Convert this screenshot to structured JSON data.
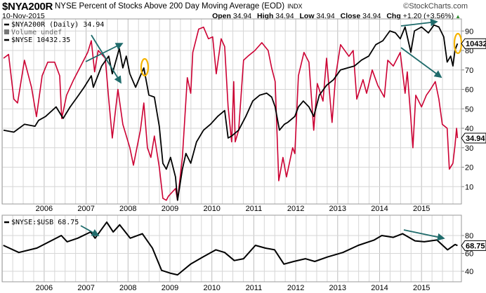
{
  "header": {
    "symbol": "$NYA200R",
    "title": "NYSE Percent of Stocks Above 200 Day Moving Average (EOD)",
    "exchange": "INDX",
    "date": "10-Nov-2015",
    "brand": "©StockCharts.com",
    "open_label": "Open",
    "open": "34.94",
    "high_label": "High",
    "high": "34.94",
    "low_label": "Low",
    "low": "34.94",
    "close_label": "Close",
    "close": "34.94",
    "chg_label": "Chg",
    "chg": "+1.20 (+3.56%)",
    "chg_icon": "up-triangle-icon"
  },
  "colors": {
    "nya200r": "#cc0033",
    "nyse": "#000000",
    "ratio": "#000000",
    "arrow": "#1f6b6b",
    "highlight": "#f5b400",
    "grid": "#d6d6d6",
    "up": "#2e8b2e"
  },
  "chart_data": [
    {
      "type": "line",
      "panel": "main",
      "legend": {
        "placement": "top-left",
        "items": [
          "$NYA200R (Daily) 34.94",
          "Volume undef",
          "$NYSE 10432.35"
        ]
      },
      "yticks": [
        10,
        20,
        30,
        40,
        50,
        60,
        70,
        80,
        90
      ],
      "xticks": [
        "2006",
        "2007",
        "2008",
        "2009",
        "2010",
        "2011",
        "2012",
        "2013",
        "2014",
        "2015"
      ],
      "grid": true,
      "last_labels": {
        "nyse": "10432",
        "nya200r": "34.94"
      },
      "series": [
        {
          "name": "$NYA200R",
          "axis": "right",
          "points": [
            [
              "2005-01-12",
              76
            ],
            [
              "2005-02-25",
              78
            ],
            [
              "2005-04-12",
              55
            ],
            [
              "2005-05-14",
              53
            ],
            [
              "2005-07-13",
              75
            ],
            [
              "2005-09-13",
              61
            ],
            [
              "2005-10-26",
              46
            ],
            [
              "2005-12-14",
              67
            ],
            [
              "2006-02-01",
              74
            ],
            [
              "2006-04-02",
              74
            ],
            [
              "2006-05-16",
              67
            ],
            [
              "2006-06-03",
              45
            ],
            [
              "2006-07-15",
              57
            ],
            [
              "2006-09-15",
              65
            ],
            [
              "2006-11-15",
              72
            ],
            [
              "2007-01-15",
              79
            ],
            [
              "2007-02-15",
              85
            ],
            [
              "2007-03-16",
              69
            ],
            [
              "2007-04-16",
              80
            ],
            [
              "2007-06-17",
              76
            ],
            [
              "2007-07-17",
              55
            ],
            [
              "2007-08-17",
              35
            ],
            [
              "2007-10-05",
              60
            ],
            [
              "2007-11-17",
              42
            ],
            [
              "2008-01-17",
              30
            ],
            [
              "2008-02-17",
              21
            ],
            [
              "2008-04-18",
              39
            ],
            [
              "2008-05-18",
              53
            ],
            [
              "2008-06-18",
              30
            ],
            [
              "2008-07-18",
              25
            ],
            [
              "2008-08-18",
              36
            ],
            [
              "2008-09-30",
              20
            ],
            [
              "2008-10-31",
              4
            ],
            [
              "2008-11-30",
              3
            ],
            [
              "2008-12-18",
              5
            ],
            [
              "2009-02-18",
              9
            ],
            [
              "2009-03-08",
              3
            ],
            [
              "2009-04-19",
              25
            ],
            [
              "2009-06-01",
              66
            ],
            [
              "2009-07-01",
              58
            ],
            [
              "2009-07-19",
              79
            ],
            [
              "2009-09-08",
              91
            ],
            [
              "2009-10-20",
              92
            ],
            [
              "2009-12-02",
              86
            ],
            [
              "2010-01-08",
              87
            ],
            [
              "2010-02-08",
              68
            ],
            [
              "2010-03-23",
              86
            ],
            [
              "2010-04-22",
              82
            ],
            [
              "2010-05-22",
              51
            ],
            [
              "2010-06-22",
              33
            ],
            [
              "2010-07-10",
              64
            ],
            [
              "2010-07-23",
              33
            ],
            [
              "2010-08-22",
              39
            ],
            [
              "2010-10-04",
              75
            ],
            [
              "2010-11-10",
              77
            ],
            [
              "2011-01-11",
              80
            ],
            [
              "2011-03-12",
              84
            ],
            [
              "2011-05-06",
              80
            ],
            [
              "2011-06-05",
              71
            ],
            [
              "2011-07-06",
              64
            ],
            [
              "2011-08-06",
              13
            ],
            [
              "2011-09-12",
              25
            ],
            [
              "2011-10-12",
              15
            ],
            [
              "2011-12-05",
              30
            ],
            [
              "2011-12-24",
              27
            ],
            [
              "2012-01-24",
              67
            ],
            [
              "2012-03-13",
              79
            ],
            [
              "2012-04-25",
              74
            ],
            [
              "2012-06-06",
              39
            ],
            [
              "2012-07-07",
              63
            ],
            [
              "2012-08-26",
              54
            ],
            [
              "2012-09-26",
              76
            ],
            [
              "2012-11-13",
              43
            ],
            [
              "2012-12-14",
              67
            ],
            [
              "2013-01-26",
              83
            ],
            [
              "2013-04-09",
              77
            ],
            [
              "2013-05-16",
              80
            ],
            [
              "2013-06-16",
              55
            ],
            [
              "2013-08-10",
              65
            ],
            [
              "2013-09-10",
              58
            ],
            [
              "2013-10-29",
              70
            ],
            [
              "2013-12-17",
              62
            ],
            [
              "2014-02-11",
              56
            ],
            [
              "2014-03-13",
              75
            ],
            [
              "2014-04-30",
              72
            ],
            [
              "2014-06-30",
              79
            ],
            [
              "2014-08-11",
              58
            ],
            [
              "2014-08-30",
              69
            ],
            [
              "2014-09-30",
              45
            ],
            [
              "2014-10-18",
              30
            ],
            [
              "2014-11-12",
              57
            ],
            [
              "2015-01-01",
              51
            ],
            [
              "2015-02-12",
              57
            ],
            [
              "2015-03-20",
              60
            ],
            [
              "2015-05-01",
              64
            ],
            [
              "2015-06-01",
              55
            ],
            [
              "2015-07-01",
              42
            ],
            [
              "2015-08-12",
              40
            ],
            [
              "2015-08-31",
              19
            ],
            [
              "2015-10-01",
              22
            ],
            [
              "2015-10-19",
              31
            ],
            [
              "2015-11-02",
              40
            ],
            [
              "2015-11-10",
              34.94
            ]
          ]
        },
        {
          "name": "$NYSE",
          "axis": "overlay",
          "points": [
            [
              "2005-01-12",
              6900
            ],
            [
              "2005-04-12",
              6820
            ],
            [
              "2005-07-13",
              7140
            ],
            [
              "2005-10-13",
              7060
            ],
            [
              "2005-11-14",
              7300
            ],
            [
              "2006-01-14",
              7460
            ],
            [
              "2006-04-15",
              7850
            ],
            [
              "2006-06-15",
              7380
            ],
            [
              "2006-08-15",
              7850
            ],
            [
              "2006-10-16",
              8250
            ],
            [
              "2006-12-15",
              8650
            ],
            [
              "2007-02-15",
              9120
            ],
            [
              "2007-03-05",
              8650
            ],
            [
              "2007-05-17",
              9520
            ],
            [
              "2007-07-17",
              9920
            ],
            [
              "2007-08-17",
              9200
            ],
            [
              "2007-10-17",
              10230
            ],
            [
              "2007-11-17",
              9440
            ],
            [
              "2007-12-17",
              9920
            ],
            [
              "2008-01-17",
              9200
            ],
            [
              "2008-03-07",
              8650
            ],
            [
              "2008-04-18",
              9120
            ],
            [
              "2008-05-18",
              9440
            ],
            [
              "2008-07-01",
              8330
            ],
            [
              "2008-08-18",
              8250
            ],
            [
              "2008-09-30",
              7060
            ],
            [
              "2008-10-31",
              5550
            ],
            [
              "2008-11-30",
              5310
            ],
            [
              "2009-01-06",
              5790
            ],
            [
              "2009-02-18",
              4990
            ],
            [
              "2009-03-08",
              4040
            ],
            [
              "2009-04-19",
              5310
            ],
            [
              "2009-05-20",
              5950
            ],
            [
              "2009-07-01",
              5550
            ],
            [
              "2009-08-20",
              6420
            ],
            [
              "2009-10-20",
              6900
            ],
            [
              "2009-12-20",
              7140
            ],
            [
              "2010-02-20",
              7460
            ],
            [
              "2010-04-22",
              7700
            ],
            [
              "2010-05-22",
              6580
            ],
            [
              "2010-06-22",
              6660
            ],
            [
              "2010-08-22",
              6900
            ],
            [
              "2010-10-23",
              7460
            ],
            [
              "2010-12-23",
              8090
            ],
            [
              "2011-02-22",
              8330
            ],
            [
              "2011-04-23",
              8410
            ],
            [
              "2011-06-05",
              8250
            ],
            [
              "2011-07-06",
              7850
            ],
            [
              "2011-08-12",
              6900
            ],
            [
              "2011-09-24",
              7140
            ],
            [
              "2011-10-24",
              7220
            ],
            [
              "2011-12-24",
              7460
            ],
            [
              "2012-01-24",
              7850
            ],
            [
              "2012-03-07",
              8090
            ],
            [
              "2012-04-25",
              7850
            ],
            [
              "2012-06-06",
              7460
            ],
            [
              "2012-07-25",
              8330
            ],
            [
              "2012-09-26",
              8730
            ],
            [
              "2012-11-26",
              8960
            ],
            [
              "2013-01-26",
              9360
            ],
            [
              "2013-03-28",
              9440
            ],
            [
              "2013-05-28",
              9520
            ],
            [
              "2013-07-28",
              9760
            ],
            [
              "2013-09-28",
              9920
            ],
            [
              "2013-11-29",
              10390
            ],
            [
              "2014-01-29",
              10550
            ],
            [
              "2014-03-31",
              10950
            ],
            [
              "2014-05-19",
              10870
            ],
            [
              "2014-06-30",
              10630
            ],
            [
              "2014-08-11",
              11110
            ],
            [
              "2014-09-30",
              10080
            ],
            [
              "2014-10-31",
              10950
            ],
            [
              "2015-01-01",
              11110
            ],
            [
              "2015-03-02",
              10870
            ],
            [
              "2015-04-19",
              11190
            ],
            [
              "2015-06-01",
              11110
            ],
            [
              "2015-07-13",
              10710
            ],
            [
              "2015-08-12",
              9680
            ],
            [
              "2015-09-12",
              9920
            ],
            [
              "2015-10-01",
              9520
            ],
            [
              "2015-10-19",
              10160
            ],
            [
              "2015-11-10",
              10432.35
            ]
          ]
        }
      ]
    },
    {
      "type": "line",
      "panel": "lower",
      "legend": {
        "placement": "top-left",
        "items": [
          "$NYSE:$USB 68.75"
        ]
      },
      "yticks": [
        40,
        60,
        80
      ],
      "xticks": [
        "2006",
        "2007",
        "2008",
        "2009",
        "2010",
        "2011",
        "2012",
        "2013",
        "2014",
        "2015"
      ],
      "grid": true,
      "last_label": "68.75",
      "series": [
        {
          "name": "$NYSE:$USB",
          "points": [
            [
              "2005-01-10",
              69
            ],
            [
              "2005-05-25",
              61
            ],
            [
              "2005-10-30",
              66
            ],
            [
              "2006-05-30",
              80
            ],
            [
              "2006-07-20",
              73
            ],
            [
              "2006-10-20",
              77
            ],
            [
              "2007-02-10",
              84
            ],
            [
              "2007-03-20",
              77
            ],
            [
              "2007-06-30",
              95
            ],
            [
              "2007-08-25",
              84
            ],
            [
              "2007-10-20",
              92
            ],
            [
              "2008-01-20",
              77
            ],
            [
              "2008-05-05",
              82
            ],
            [
              "2008-08-01",
              66
            ],
            [
              "2008-10-20",
              41
            ],
            [
              "2009-01-01",
              38
            ],
            [
              "2009-03-08",
              36
            ],
            [
              "2009-06-30",
              48
            ],
            [
              "2009-10-15",
              56
            ],
            [
              "2010-02-05",
              64
            ],
            [
              "2010-04-22",
              61
            ],
            [
              "2010-07-15",
              52
            ],
            [
              "2010-10-04",
              54
            ],
            [
              "2011-01-15",
              69
            ],
            [
              "2011-04-10",
              66
            ],
            [
              "2011-07-01",
              64
            ],
            [
              "2011-09-20",
              48
            ],
            [
              "2011-12-15",
              51
            ],
            [
              "2012-03-25",
              54
            ],
            [
              "2012-06-15",
              51
            ],
            [
              "2012-10-05",
              56
            ],
            [
              "2013-02-15",
              61
            ],
            [
              "2013-06-30",
              69
            ],
            [
              "2013-11-15",
              75
            ],
            [
              "2014-01-20",
              80
            ],
            [
              "2014-04-30",
              78
            ],
            [
              "2014-07-20",
              82
            ],
            [
              "2014-11-05",
              74
            ],
            [
              "2015-01-25",
              73
            ],
            [
              "2015-05-15",
              75
            ],
            [
              "2015-08-15",
              64
            ],
            [
              "2015-10-20",
              70
            ],
            [
              "2015-11-10",
              68.75
            ]
          ]
        }
      ]
    }
  ]
}
